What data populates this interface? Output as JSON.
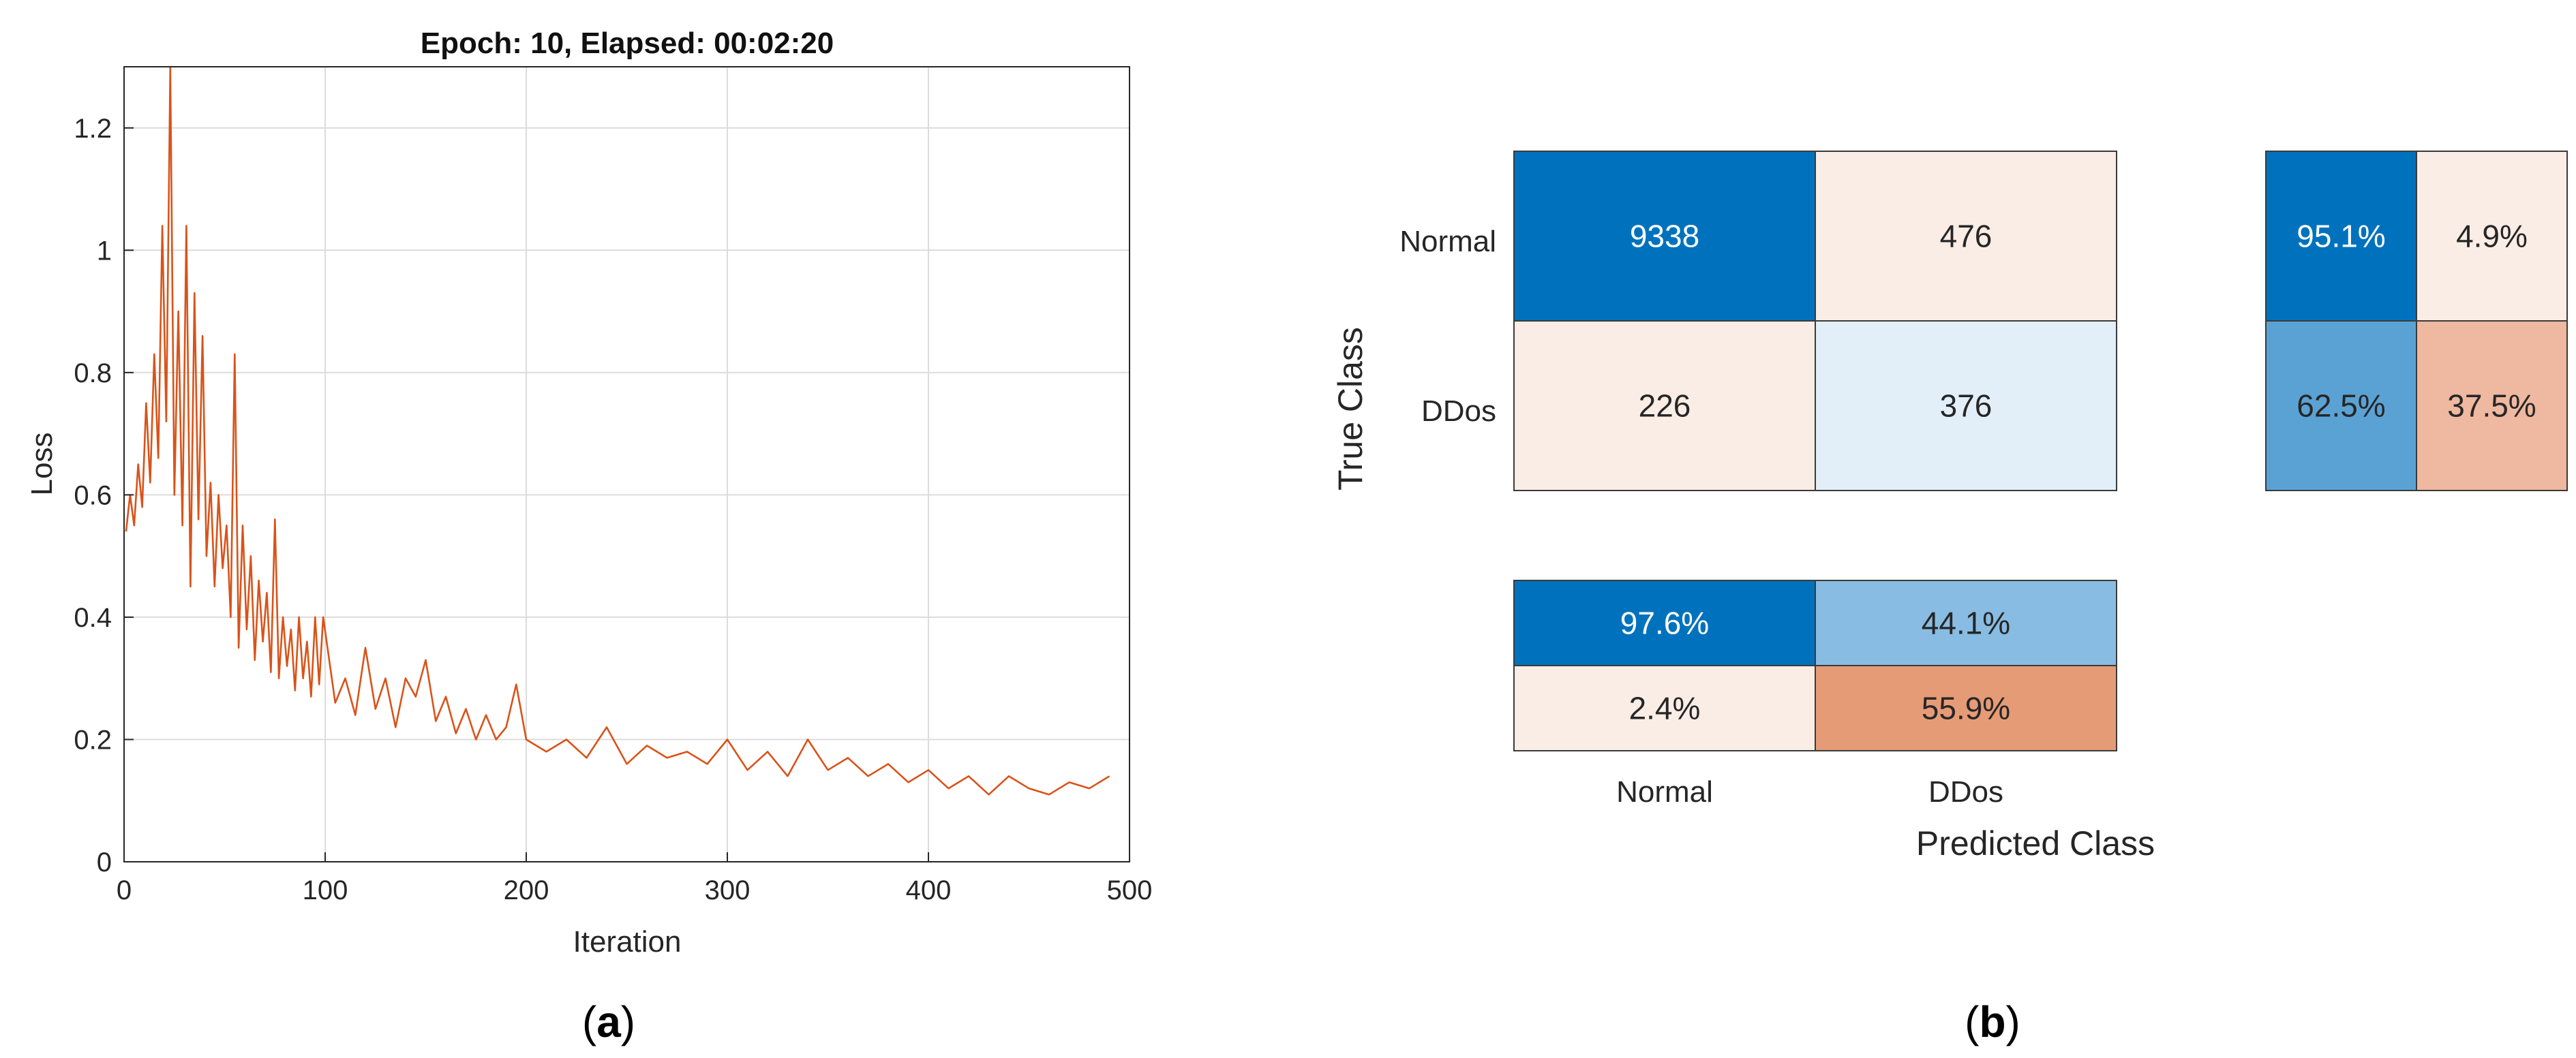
{
  "chart_data": [
    {
      "type": "line",
      "panel_label": "a",
      "title": "Epoch: 10, Elapsed: 00:02:20",
      "xlabel": "Iteration",
      "ylabel": "Loss",
      "xlim": [
        0,
        500
      ],
      "ylim": [
        0,
        1.3
      ],
      "xticks": [
        "0",
        "100",
        "200",
        "300",
        "400",
        "500"
      ],
      "yticks": [
        "0",
        "0.2",
        "0.4",
        "0.6",
        "0.8",
        "1",
        "1.2"
      ],
      "grid": true,
      "series": [
        {
          "color": "#D95319",
          "x": [
            1,
            3,
            5,
            7,
            9,
            11,
            13,
            15,
            17,
            19,
            21,
            23,
            25,
            27,
            29,
            31,
            33,
            35,
            37,
            39,
            41,
            43,
            45,
            47,
            49,
            51,
            53,
            55,
            57,
            59,
            61,
            63,
            65,
            67,
            69,
            71,
            73,
            75,
            77,
            79,
            81,
            83,
            85,
            87,
            89,
            91,
            93,
            95,
            97,
            99,
            105,
            110,
            115,
            120,
            125,
            130,
            135,
            140,
            145,
            150,
            155,
            160,
            165,
            170,
            175,
            180,
            185,
            190,
            195,
            200,
            210,
            220,
            230,
            240,
            250,
            260,
            270,
            280,
            290,
            300,
            310,
            320,
            330,
            340,
            350,
            360,
            370,
            380,
            390,
            400,
            410,
            420,
            430,
            440,
            450,
            460,
            470,
            480,
            490
          ],
          "y": [
            0.54,
            0.6,
            0.55,
            0.65,
            0.58,
            0.75,
            0.62,
            0.83,
            0.66,
            1.04,
            0.72,
            1.3,
            0.6,
            0.9,
            0.55,
            1.04,
            0.45,
            0.93,
            0.56,
            0.86,
            0.5,
            0.62,
            0.45,
            0.6,
            0.48,
            0.55,
            0.4,
            0.83,
            0.35,
            0.55,
            0.38,
            0.5,
            0.33,
            0.46,
            0.36,
            0.44,
            0.31,
            0.56,
            0.3,
            0.4,
            0.32,
            0.38,
            0.28,
            0.4,
            0.3,
            0.36,
            0.27,
            0.4,
            0.29,
            0.4,
            0.26,
            0.3,
            0.24,
            0.35,
            0.25,
            0.3,
            0.22,
            0.3,
            0.27,
            0.33,
            0.23,
            0.27,
            0.21,
            0.25,
            0.2,
            0.24,
            0.2,
            0.22,
            0.29,
            0.2,
            0.18,
            0.2,
            0.17,
            0.22,
            0.16,
            0.19,
            0.17,
            0.18,
            0.16,
            0.2,
            0.15,
            0.18,
            0.14,
            0.2,
            0.15,
            0.17,
            0.14,
            0.16,
            0.13,
            0.15,
            0.12,
            0.14,
            0.11,
            0.14,
            0.12,
            0.11,
            0.13,
            0.12,
            0.14
          ]
        }
      ]
    },
    {
      "type": "heatmap",
      "panel_label": "b",
      "xlabel": "Predicted Class",
      "ylabel": "True Class",
      "categories": [
        "Normal",
        "DDos"
      ],
      "matrix": [
        [
          9338,
          476
        ],
        [
          226,
          376
        ]
      ],
      "matrix_colors": [
        [
          "#0072BD",
          "#FAEDE6"
        ],
        [
          "#FAEDE6",
          "#E3EFF8"
        ]
      ],
      "matrix_text_colors": [
        [
          "#FFFFFF",
          "#262626"
        ],
        [
          "#262626",
          "#262626"
        ]
      ],
      "row_summary": [
        [
          "95.1%",
          "4.9%"
        ],
        [
          "62.5%",
          "37.5%"
        ]
      ],
      "row_summary_colors": [
        [
          "#0072BD",
          "#FAEDE6"
        ],
        [
          "#5BA2D4",
          "#EFB8A0"
        ]
      ],
      "row_summary_text_colors": [
        [
          "#FFFFFF",
          "#262626"
        ],
        [
          "#262626",
          "#262626"
        ]
      ],
      "column_summary": [
        [
          "97.6%",
          "44.1%"
        ],
        [
          "2.4%",
          "55.9%"
        ]
      ],
      "column_summary_colors": [
        [
          "#0072BD",
          "#89BCE2"
        ],
        [
          "#FAEDE6",
          "#E69B77"
        ]
      ],
      "column_summary_text_colors": [
        [
          "#FFFFFF",
          "#262626"
        ],
        [
          "#262626",
          "#262626"
        ]
      ]
    }
  ]
}
